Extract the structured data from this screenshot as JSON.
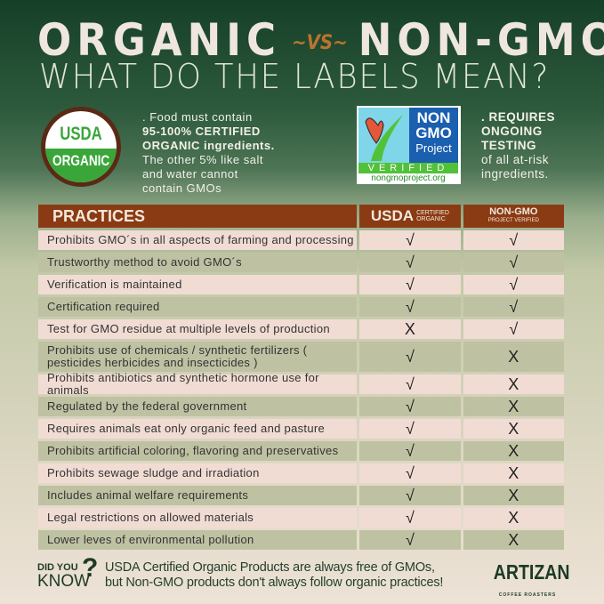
{
  "title": {
    "left": "ORGANIC",
    "vs": "~VS~",
    "right": "NON-GMO",
    "subtitle": "WHAT DO THE LABELS MEAN?"
  },
  "usda_logo": {
    "top": "USDA",
    "bottom": "ORGANIC"
  },
  "usda_desc": {
    "line1": ". Food must contain",
    "bold1": "95-100% CERTIFIED",
    "bold2": "ORGANIC ingredients.",
    "line2": "The other 5% like salt",
    "line3": "and water cannot",
    "line4": "contain GMOs"
  },
  "nongmo_logo": {
    "non": "NON",
    "gmo": "GMO",
    "project": "Project",
    "verified": "VERIFIED",
    "url": "nongmoproject.org"
  },
  "nongmo_desc": {
    "bold1": ". REQUIRES",
    "bold2": "ONGOING",
    "bold3": "TESTING",
    "line1": "of all at-risk",
    "line2": "ingredients."
  },
  "colors": {
    "header": "#8a3b14",
    "row_pink": "#f1dcd4",
    "row_olive": "#bfc2a2",
    "accent": "#b8742e"
  },
  "table": {
    "headers": {
      "practices": "PRACTICES",
      "usda": "USDA",
      "usda_small1": "CERTIFIED",
      "usda_small2": "ORGANIC",
      "nongmo": "NON-GMO",
      "nongmo_small": "PROJECT VERIFIED"
    },
    "rows": [
      {
        "practice": "Prohibits GMO´s in all aspects of farming and processing",
        "usda": "√",
        "nongmo": "√"
      },
      {
        "practice": "Trustworthy method to avoid GMO´s",
        "usda": "√",
        "nongmo": "√"
      },
      {
        "practice": "Verification is maintained",
        "usda": "√",
        "nongmo": "√"
      },
      {
        "practice": "Certification required",
        "usda": "√",
        "nongmo": "√"
      },
      {
        "practice": "Test for GMO residue at multiple levels of production",
        "usda": "X",
        "nongmo": "√"
      },
      {
        "practice": "Prohibits use of chemicals / synthetic fertilizers ( pesticides herbicides and insecticides )",
        "usda": "√",
        "nongmo": "X"
      },
      {
        "practice": "Prohibits antibiotics and synthetic hormone use for animals",
        "usda": "√",
        "nongmo": "X"
      },
      {
        "practice": "Regulated by the federal government",
        "usda": "√",
        "nongmo": "X"
      },
      {
        "practice": "Requires animals eat only organic feed and pasture",
        "usda": "√",
        "nongmo": "X"
      },
      {
        "practice": "Prohibits  artificial coloring, flavoring and preservatives",
        "usda": "√",
        "nongmo": "X"
      },
      {
        "practice": "Prohibits sewage sludge and irradiation",
        "usda": "√",
        "nongmo": "X"
      },
      {
        "practice": "Includes animal welfare requirements",
        "usda": "√",
        "nongmo": "X"
      },
      {
        "practice": "Legal restrictions on allowed materials",
        "usda": "√",
        "nongmo": "X"
      },
      {
        "practice": "Lower leves of environmental pollution",
        "usda": "√",
        "nongmo": "X"
      }
    ]
  },
  "footer": {
    "did_you": "DID YOU",
    "know": "KNOW",
    "q": "?",
    "line1": "USDA Certified Organic Products are always free of GMOs,",
    "line2": "but Non-GMO products don't always follow organic practices!"
  },
  "brand": {
    "name": "ARTIZAN",
    "sub": "COFFEE ROASTERS"
  }
}
